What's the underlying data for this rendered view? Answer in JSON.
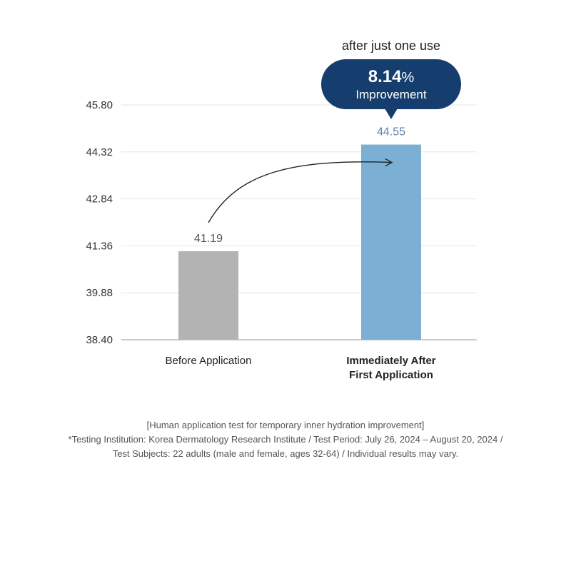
{
  "chart_data": {
    "type": "bar",
    "categories": [
      "Before Application",
      "Immediately After First Application"
    ],
    "category_label_lines": [
      [
        "Before Application"
      ],
      [
        "Immediately After",
        "First Application"
      ]
    ],
    "values": [
      41.19,
      44.55
    ],
    "value_labels": [
      "41.19",
      "44.55"
    ],
    "ylim": [
      38.4,
      45.8
    ],
    "yticks": [
      "38.40",
      "39.88",
      "41.36",
      "42.84",
      "44.32",
      "45.80"
    ],
    "grid": true,
    "colors": {
      "bars": [
        "#b3b3b3",
        "#7bafd4"
      ],
      "value_labels": [
        "#555555",
        "#5a7fa8"
      ],
      "callout": "#153e6f",
      "arrow": "#222222"
    },
    "callout": {
      "heading": "after just one use",
      "value": "8.14",
      "unit": "%",
      "text": "Improvement"
    }
  },
  "footnote": {
    "line1": "[Human application test for temporary inner hydration improvement]",
    "line2": "*Testing Institution: Korea Dermatology Research Institute / Test Period: July 26, 2024 – August 20, 2024 /",
    "line3": "Test Subjects: 22 adults (male and female, ages 32-64) /  Individual results may vary."
  }
}
